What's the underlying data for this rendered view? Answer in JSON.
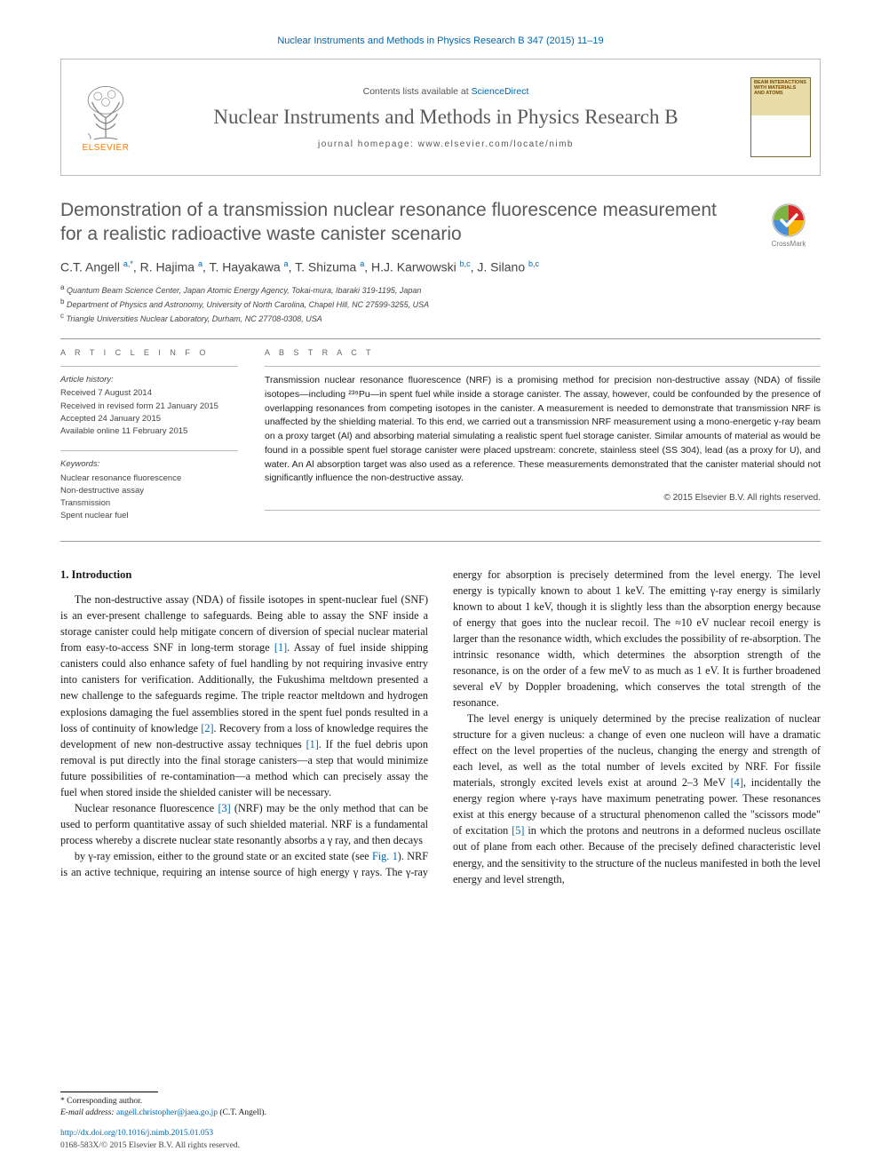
{
  "header": {
    "citation_line": "Nuclear Instruments and Methods in Physics Research B 347 (2015) 11–19",
    "contents_prefix": "Contents lists available at ",
    "contents_link": "ScienceDirect",
    "journal_name": "Nuclear Instruments and Methods in Physics Research B",
    "homepage_prefix": "journal homepage: ",
    "homepage_url": "www.elsevier.com/locate/nimb",
    "publisher_label": "ELSEVIER",
    "cover_text": "BEAM INTERACTIONS WITH MATERIALS AND ATOMS"
  },
  "crossmark": {
    "label": "CrossMark"
  },
  "article": {
    "title": "Demonstration of a transmission nuclear resonance fluorescence measurement for a realistic radioactive waste canister scenario",
    "authors_html": "C.T. Angell <sup>a,*</sup>, R. Hajima <sup>a</sup>, T. Hayakawa <sup>a</sup>, T. Shizuma <sup>a</sup>, H.J. Karwowski <sup>b,c</sup>, J. Silano <sup>b,c</sup>",
    "affiliations": {
      "a": "Quantum Beam Science Center, Japan Atomic Energy Agency, Tokai-mura, Ibaraki 319-1195, Japan",
      "b": "Department of Physics and Astronomy, University of North Carolina, Chapel Hill, NC 27599-3255, USA",
      "c": "Triangle Universities Nuclear Laboratory, Durham, NC 27708-0308, USA"
    }
  },
  "info": {
    "section_label": "A R T I C L E   I N F O",
    "history_title": "Article history:",
    "history": [
      "Received 7 August 2014",
      "Received in revised form 21 January 2015",
      "Accepted 24 January 2015",
      "Available online 11 February 2015"
    ],
    "keywords_title": "Keywords:",
    "keywords": [
      "Nuclear resonance fluorescence",
      "Non-destructive assay",
      "Transmission",
      "Spent nuclear fuel"
    ]
  },
  "abstract": {
    "section_label": "A B S T R A C T",
    "text": "Transmission nuclear resonance fluorescence (NRF) is a promising method for precision non-destructive assay (NDA) of fissile isotopes—including ²³⁹Pu—in spent fuel while inside a storage canister. The assay, however, could be confounded by the presence of overlapping resonances from competing isotopes in the canister. A measurement is needed to demonstrate that transmission NRF is unaffected by the shielding material. To this end, we carried out a transmission NRF measurement using a mono-energetic γ-ray beam on a proxy target (Al) and absorbing material simulating a realistic spent fuel storage canister. Similar amounts of material as would be found in a possible spent fuel storage canister were placed upstream: concrete, stainless steel (SS 304), lead (as a proxy for U), and water. An Al absorption target was also used as a reference. These measurements demonstrated that the canister material should not significantly influence the non-destructive assay.",
    "copyright": "© 2015 Elsevier B.V. All rights reserved."
  },
  "body": {
    "heading": "1. Introduction",
    "p1": "The non-destructive assay (NDA) of fissile isotopes in spent-nuclear fuel (SNF) is an ever-present challenge to safeguards. Being able to assay the SNF inside a storage canister could help mitigate concern of diversion of special nuclear material from easy-to-access SNF in long-term storage [1]. Assay of fuel inside shipping canisters could also enhance safety of fuel handling by not requiring invasive entry into canisters for verification. Additionally, the Fukushima meltdown presented a new challenge to the safeguards regime. The triple reactor meltdown and hydrogen explosions damaging the fuel assemblies stored in the spent fuel ponds resulted in a loss of continuity of knowledge [2]. Recovery from a loss of knowledge requires the development of new non-destructive assay techniques [1]. If the fuel debris upon removal is put directly into the final storage canisters—a step that would minimize future possibilities of re-contamination—a method which can precisely assay the fuel when stored inside the shielded canister will be necessary.",
    "p2": "Nuclear resonance fluorescence [3] (NRF) may be the only method that can be used to perform quantitative assay of such shielded material. NRF is a fundamental process whereby a discrete nuclear state resonantly absorbs a γ ray, and then decays",
    "p3": "by γ-ray emission, either to the ground state or an excited state (see Fig. 1). NRF is an active technique, requiring an intense source of high energy γ rays. The γ-ray energy for absorption is precisely determined from the level energy. The level energy is typically known to about 1 keV. The emitting γ-ray energy is similarly known to about 1 keV, though it is slightly less than the absorption energy because of energy that goes into the nuclear recoil. The ≈10 eV nuclear recoil energy is larger than the resonance width, which excludes the possibility of re-absorption. The intrinsic resonance width, which determines the absorption strength of the resonance, is on the order of a few meV to as much as 1 eV. It is further broadened several eV by Doppler broadening, which conserves the total strength of the resonance.",
    "p4": "The level energy is uniquely determined by the precise realization of nuclear structure for a given nucleus: a change of even one nucleon will have a dramatic effect on the level properties of the nucleus, changing the energy and strength of each level, as well as the total number of levels excited by NRF. For fissile materials, strongly excited levels exist at around 2–3 MeV [4], incidentally the energy region where γ-rays have maximum penetrating power. These resonances exist at this energy because of a structural phenomenon called the \"scissors mode\" of excitation [5] in which the protons and neutrons in a deformed nucleus oscillate out of plane from each other. Because of the precisely defined characteristic level energy, and the sensitivity to the structure of the nucleus manifested in both the level energy and level strength,"
  },
  "footer": {
    "corr_label": "* Corresponding author.",
    "email_label": "E-mail address:",
    "email": "angell.christopher@jaea.go.jp",
    "email_author": "(C.T. Angell).",
    "doi": "http://dx.doi.org/10.1016/j.nimb.2015.01.053",
    "issn_copyright": "0168-583X/© 2015 Elsevier B.V. All rights reserved."
  },
  "colors": {
    "link": "#0066aa",
    "publisher_orange": "#ff7a00",
    "heading_gray": "#5a5a5a",
    "text": "#1a1a1a",
    "muted": "#444444",
    "rule": "#999999"
  }
}
